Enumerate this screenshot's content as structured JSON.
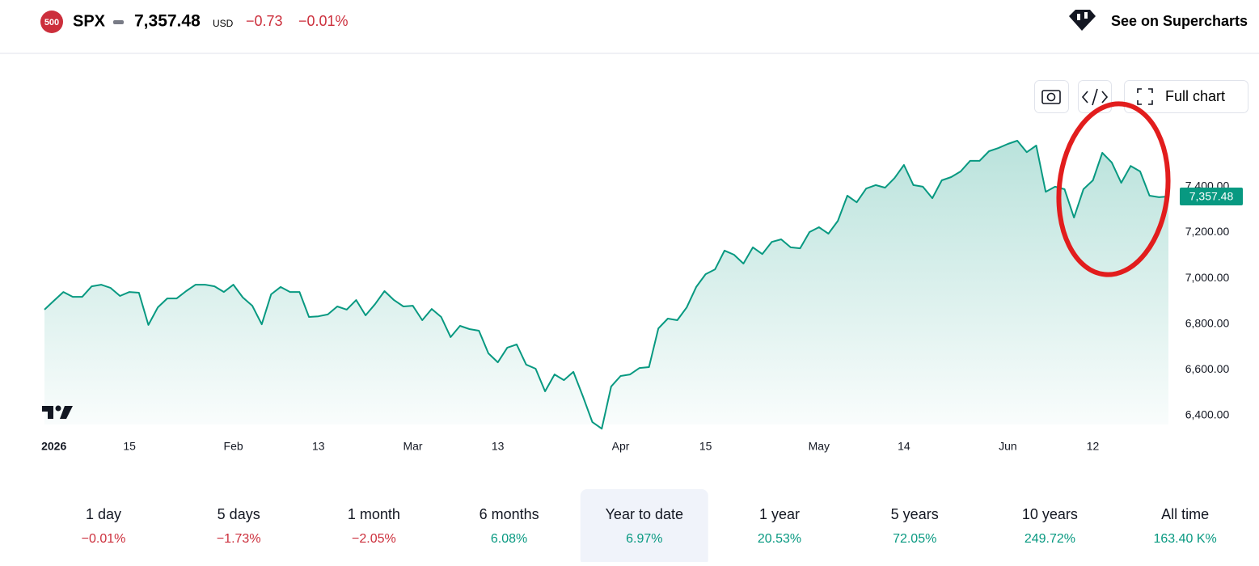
{
  "header": {
    "badge": "500",
    "symbol": "SPX",
    "price": "7,357.48",
    "currency": "USD",
    "change": "−0.73",
    "change_percent": "−0.01%",
    "change_color": "#cc2f3c",
    "link": "See on Supercharts"
  },
  "toolbar": {
    "full_chart": "Full chart"
  },
  "chart_data": {
    "type": "area",
    "color": "#089981",
    "values": [
      6863,
      6902,
      6940,
      6919,
      6919,
      6965,
      6972,
      6958,
      6923,
      6940,
      6937,
      6796,
      6873,
      6912,
      6912,
      6944,
      6972,
      6972,
      6965,
      6940,
      6972,
      6916,
      6880,
      6799,
      6930,
      6962,
      6940,
      6940,
      6831,
      6834,
      6842,
      6877,
      6863,
      6905,
      6838,
      6887,
      6944,
      6905,
      6877,
      6880,
      6817,
      6866,
      6831,
      6743,
      6792,
      6778,
      6771,
      6672,
      6633,
      6697,
      6711,
      6623,
      6605,
      6506,
      6580,
      6555,
      6591,
      6485,
      6372,
      6343,
      6527,
      6573,
      6580,
      6608,
      6612,
      6781,
      6824,
      6817,
      6873,
      6962,
      7018,
      7039,
      7121,
      7103,
      7064,
      7135,
      7106,
      7159,
      7170,
      7135,
      7131,
      7202,
      7223,
      7195,
      7251,
      7361,
      7332,
      7392,
      7407,
      7396,
      7438,
      7495,
      7407,
      7400,
      7350,
      7428,
      7442,
      7467,
      7513,
      7513,
      7555,
      7569,
      7587,
      7601,
      7551,
      7580,
      7378,
      7400,
      7389,
      7265,
      7389,
      7428,
      7548,
      7506,
      7417,
      7491,
      7467,
      7361,
      7354,
      7357.48
    ],
    "xlim": [
      0,
      119
    ],
    "xticks": [
      {
        "value": 1,
        "label": "2026"
      },
      {
        "value": 9,
        "label": "15"
      },
      {
        "value": 20,
        "label": "Feb"
      },
      {
        "value": 29,
        "label": "13"
      },
      {
        "value": 39,
        "label": "Mar"
      },
      {
        "value": 48,
        "label": "13"
      },
      {
        "value": 61,
        "label": "Apr"
      },
      {
        "value": 70,
        "label": "15"
      },
      {
        "value": 82,
        "label": "May"
      },
      {
        "value": 91,
        "label": "14"
      },
      {
        "value": 102,
        "label": "Jun"
      },
      {
        "value": 111,
        "label": "12"
      }
    ],
    "ylim": [
      6340,
      7700
    ],
    "yticks": [
      {
        "value": 6400,
        "label": "6,400.00"
      },
      {
        "value": 6600,
        "label": "6,600.00"
      },
      {
        "value": 6800,
        "label": "6,800.00"
      },
      {
        "value": 7000,
        "label": "7,000.00"
      },
      {
        "value": 7200,
        "label": "7,200.00"
      },
      {
        "value": 7400,
        "label": "7,400.00"
      }
    ],
    "grid": false
  },
  "periods": [
    {
      "label": "1 day",
      "change": "−0.01%",
      "color": "#cc2f3c"
    },
    {
      "label": "5 days",
      "change": "−1.73%",
      "color": "#cc2f3c"
    },
    {
      "label": "1 month",
      "change": "−2.05%",
      "color": "#cc2f3c"
    },
    {
      "label": "6 months",
      "change": "6.08%",
      "color": "#089981"
    },
    {
      "label": "Year to date",
      "change": "6.97%",
      "color": "#089981",
      "selected": true
    },
    {
      "label": "1 year",
      "change": "20.53%",
      "color": "#089981"
    },
    {
      "label": "5 years",
      "change": "72.05%",
      "color": "#089981"
    },
    {
      "label": "10 years",
      "change": "249.72%",
      "color": "#089981"
    },
    {
      "label": "All time",
      "change": "163.40 K%",
      "color": "#089981"
    }
  ]
}
